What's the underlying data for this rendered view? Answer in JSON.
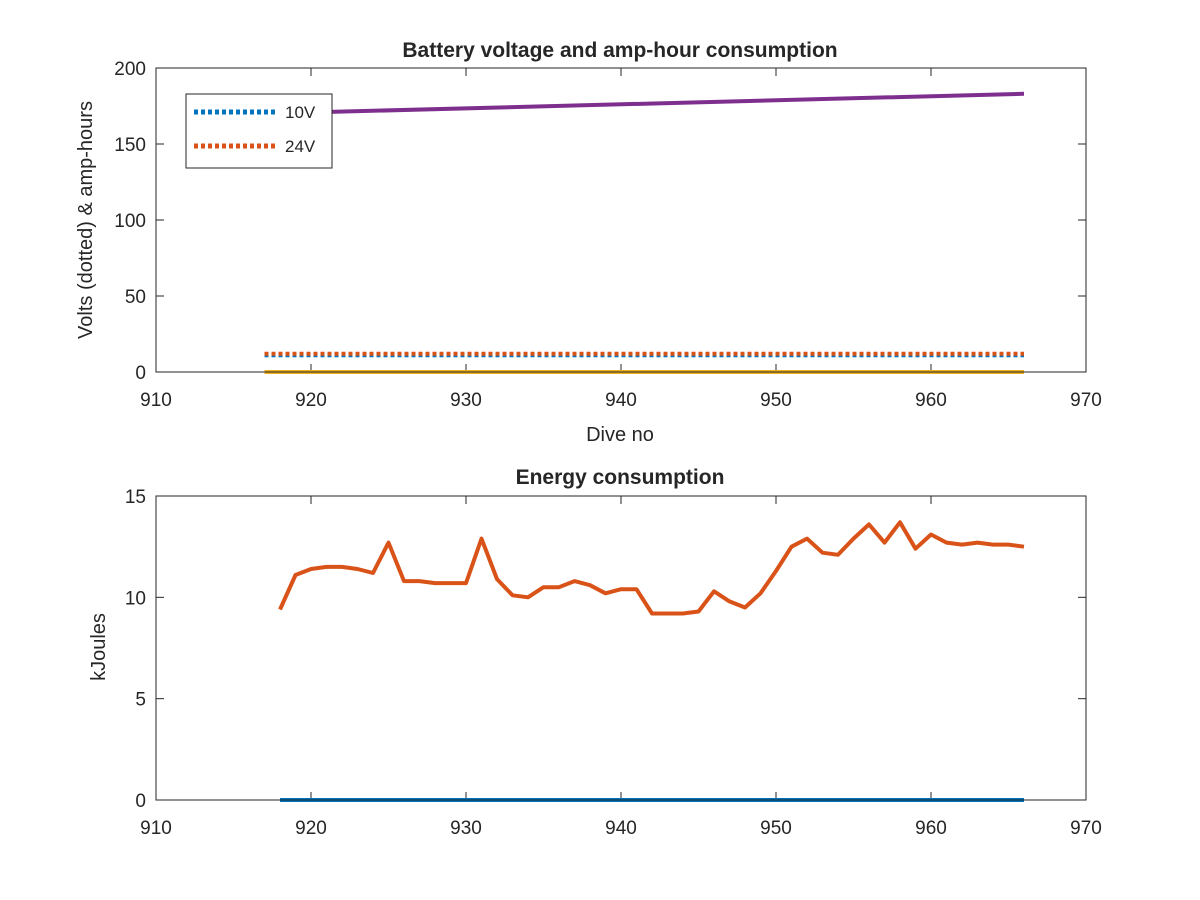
{
  "chart_data": [
    {
      "type": "line",
      "title": "Battery voltage and amp-hour consumption",
      "xlabel": "Dive no",
      "ylabel": "Volts (dotted) & amp-hours",
      "xlim": [
        910,
        970
      ],
      "ylim": [
        0,
        200
      ],
      "xticks": [
        "910",
        "920",
        "930",
        "940",
        "950",
        "960",
        "970"
      ],
      "yticks": [
        "0",
        "50",
        "100",
        "150",
        "200"
      ],
      "grid": false,
      "legend_position": "top-left",
      "series": [
        {
          "name": "10V",
          "style": "dotted",
          "color": "#0072BD",
          "x": [
            917,
            966
          ],
          "y": [
            11,
            11
          ]
        },
        {
          "name": "24V",
          "style": "dotted",
          "color": "#D95319",
          "x": [
            917,
            966
          ],
          "y": [
            12,
            12
          ]
        },
        {
          "style": "solid",
          "color": "#EDB120",
          "x": [
            917,
            966
          ],
          "y": [
            0,
            0
          ]
        },
        {
          "style": "solid",
          "color": "#7E2F8E",
          "x": [
            917,
            966
          ],
          "y": [
            170,
            183
          ]
        }
      ]
    },
    {
      "type": "line",
      "title": "Energy consumption",
      "xlabel": "",
      "ylabel": "kJoules",
      "xlim": [
        910,
        970
      ],
      "ylim": [
        0,
        15
      ],
      "xticks": [
        "910",
        "920",
        "930",
        "940",
        "950",
        "960",
        "970"
      ],
      "yticks": [
        "0",
        "5",
        "10",
        "15"
      ],
      "grid": false,
      "series": [
        {
          "style": "solid",
          "color": "#0072BD",
          "x": [
            918,
            966
          ],
          "y": [
            0,
            0
          ]
        },
        {
          "style": "solid",
          "color": "#D95319",
          "x": [
            918,
            919,
            920,
            921,
            922,
            923,
            924,
            925,
            926,
            927,
            928,
            929,
            930,
            931,
            932,
            933,
            934,
            935,
            936,
            937,
            938,
            939,
            940,
            941,
            942,
            943,
            944,
            945,
            946,
            947,
            948,
            949,
            950,
            951,
            952,
            953,
            954,
            955,
            956,
            957,
            958,
            959,
            960,
            961,
            962,
            963,
            964,
            965,
            966
          ],
          "y": [
            9.4,
            11.1,
            11.4,
            11.5,
            11.5,
            11.4,
            11.2,
            12.7,
            10.8,
            10.8,
            10.7,
            10.7,
            10.7,
            12.9,
            10.9,
            10.1,
            10.0,
            10.5,
            10.5,
            10.8,
            10.6,
            10.2,
            10.4,
            10.4,
            9.2,
            9.2,
            9.2,
            9.3,
            10.3,
            9.8,
            9.5,
            10.2,
            11.3,
            12.5,
            12.9,
            12.2,
            12.1,
            12.9,
            13.6,
            12.7,
            13.7,
            12.4,
            13.1,
            12.7,
            12.6,
            12.7,
            12.6,
            12.6,
            12.5
          ]
        }
      ]
    }
  ]
}
